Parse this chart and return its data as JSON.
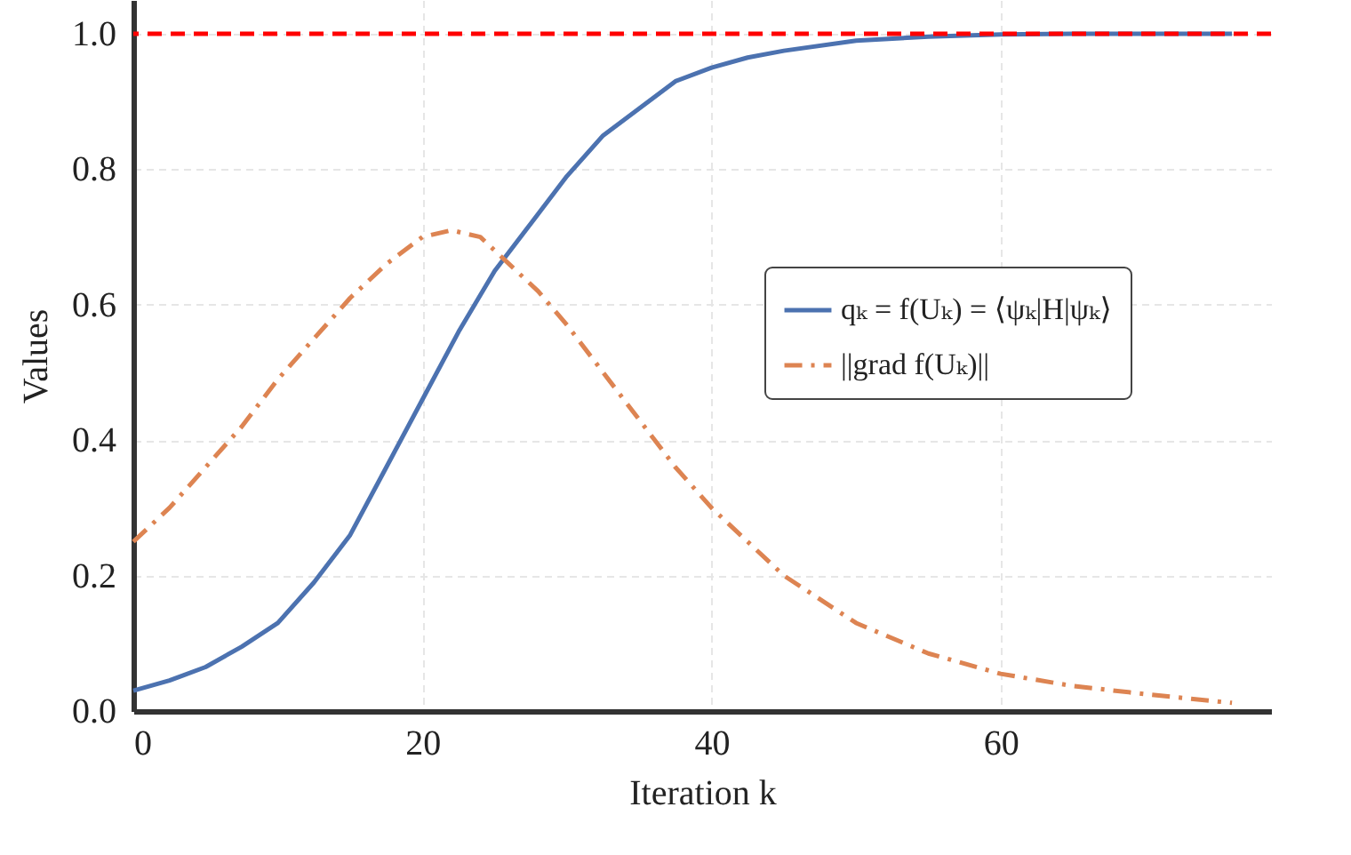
{
  "chart_data": {
    "type": "line",
    "xlabel": "Iteration k",
    "ylabel": "Values",
    "xlim": [
      0,
      78.7
    ],
    "ylim": [
      0,
      1.05
    ],
    "xticks": [
      0,
      20,
      40,
      60
    ],
    "yticks": [
      {
        "value": 0,
        "label": "0.0"
      },
      0.2,
      0.4,
      0.6,
      0.8,
      {
        "value": 1,
        "label": "1.0"
      }
    ],
    "grid": true,
    "legend": "right",
    "ref_lines": [
      {
        "axis": "y",
        "value": 1.0,
        "color": "#ff0000",
        "line_style": "dashed"
      }
    ],
    "series": [
      {
        "name": "qₖ = f(Uₖ) = ⟨ψₖ|H|ψₖ⟩",
        "color": "#4c72b0",
        "line_style": "solid",
        "x": [
          0,
          2.5,
          5,
          7.5,
          10,
          12.5,
          15,
          17.5,
          20,
          22.5,
          25,
          27.5,
          30,
          32.5,
          35,
          37.5,
          40,
          42.5,
          45,
          50,
          55,
          60,
          65,
          70,
          76
        ],
        "values": [
          0.03,
          0.045,
          0.065,
          0.095,
          0.13,
          0.19,
          0.26,
          0.36,
          0.46,
          0.56,
          0.65,
          0.72,
          0.79,
          0.85,
          0.89,
          0.93,
          0.95,
          0.965,
          0.975,
          0.99,
          0.996,
          0.999,
          1.0,
          1.0,
          1.0
        ]
      },
      {
        "name": "||grad f(Uₖ)||",
        "color": "#dd8452",
        "line_style": "dashdot",
        "x": [
          0,
          2.5,
          5,
          7.5,
          10,
          12.5,
          15,
          17.5,
          20,
          22,
          24,
          26,
          28,
          30,
          32.5,
          35,
          37.5,
          40,
          42.5,
          45,
          50,
          55,
          60,
          65,
          70,
          76
        ],
        "values": [
          0.25,
          0.3,
          0.36,
          0.42,
          0.49,
          0.55,
          0.61,
          0.66,
          0.7,
          0.71,
          0.7,
          0.66,
          0.62,
          0.57,
          0.5,
          0.43,
          0.36,
          0.3,
          0.25,
          0.2,
          0.13,
          0.085,
          0.055,
          0.037,
          0.025,
          0.012
        ]
      }
    ]
  }
}
